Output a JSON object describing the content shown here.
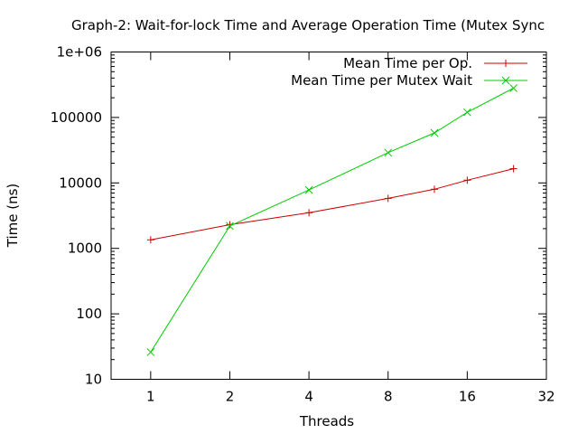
{
  "chart_data": {
    "type": "line",
    "title": "Graph-2: Wait-for-lock Time and Average Operation Time (Mutex Sync",
    "xlabel": "Threads",
    "ylabel": "Time (ns)",
    "x_scale": "log2",
    "y_scale": "log10",
    "xlim": [
      0.707,
      32
    ],
    "ylim": [
      10,
      1000000
    ],
    "x_ticks": [
      1,
      2,
      4,
      8,
      16,
      32
    ],
    "x_tick_labels": [
      "1",
      "2",
      "4",
      "8",
      "16",
      "32"
    ],
    "y_ticks": [
      10,
      100,
      1000,
      10000,
      100000,
      1000000
    ],
    "y_tick_labels": [
      "10",
      "100",
      "1000",
      "10000",
      "100000",
      "1e+06"
    ],
    "legend_position": "top-right",
    "grid": false,
    "series": [
      {
        "name": "Mean Time per Op.",
        "color": "#cc0000",
        "marker": "plus",
        "x": [
          1,
          2,
          4,
          8,
          12,
          16,
          24
        ],
        "y": [
          1350,
          2300,
          3500,
          5800,
          8000,
          11000,
          16500
        ]
      },
      {
        "name": "Mean Time per Mutex Wait",
        "color": "#00cc00",
        "marker": "cross",
        "x": [
          1,
          2,
          4,
          8,
          12,
          16,
          24
        ],
        "y": [
          26,
          2200,
          7800,
          29000,
          58000,
          120000,
          280000
        ]
      }
    ]
  }
}
